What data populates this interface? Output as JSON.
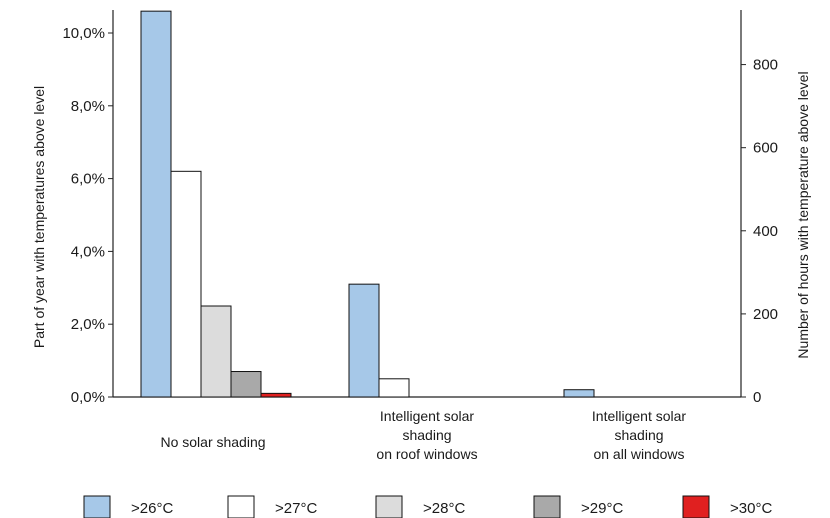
{
  "chart_data": {
    "type": "bar",
    "categories": [
      [
        "No solar shading"
      ],
      [
        "Intelligent solar",
        "shading",
        "on roof windows"
      ],
      [
        "Intelligent solar",
        "shading",
        "on all windows"
      ]
    ],
    "series": [
      {
        "name": ">26°C",
        "color": "#a6c8e8",
        "values": [
          10.6,
          3.1,
          0.2
        ]
      },
      {
        "name": ">27°C",
        "color": "#ffffff",
        "values": [
          6.2,
          0.5,
          0
        ]
      },
      {
        "name": ">28°C",
        "color": "#dcdcdc",
        "values": [
          2.5,
          0,
          0
        ]
      },
      {
        "name": ">29°C",
        "color": "#a9a9a9",
        "values": [
          0.7,
          0,
          0
        ]
      },
      {
        "name": ">30°C",
        "color": "#e02020",
        "values": [
          0.1,
          0,
          0
        ]
      }
    ],
    "ylabel_left": "Part of year with temperatures above level",
    "ylabel_right": "Number of hours with temperature above level",
    "y_left_ticks": [
      "0,0%",
      "2,0%",
      "4,0%",
      "6,0%",
      "8,0%",
      "10,0%"
    ],
    "y_left_tick_values": [
      0,
      2,
      4,
      6,
      8,
      10
    ],
    "y_left_range": [
      0,
      10.6
    ],
    "y_right_ticks": [
      "0",
      "200",
      "400",
      "600",
      "800"
    ],
    "y_right_tick_values": [
      0,
      200,
      400,
      600,
      800
    ],
    "y_right_range": [
      0,
      928.56
    ],
    "legend_position": "bottom",
    "grid": false
  }
}
